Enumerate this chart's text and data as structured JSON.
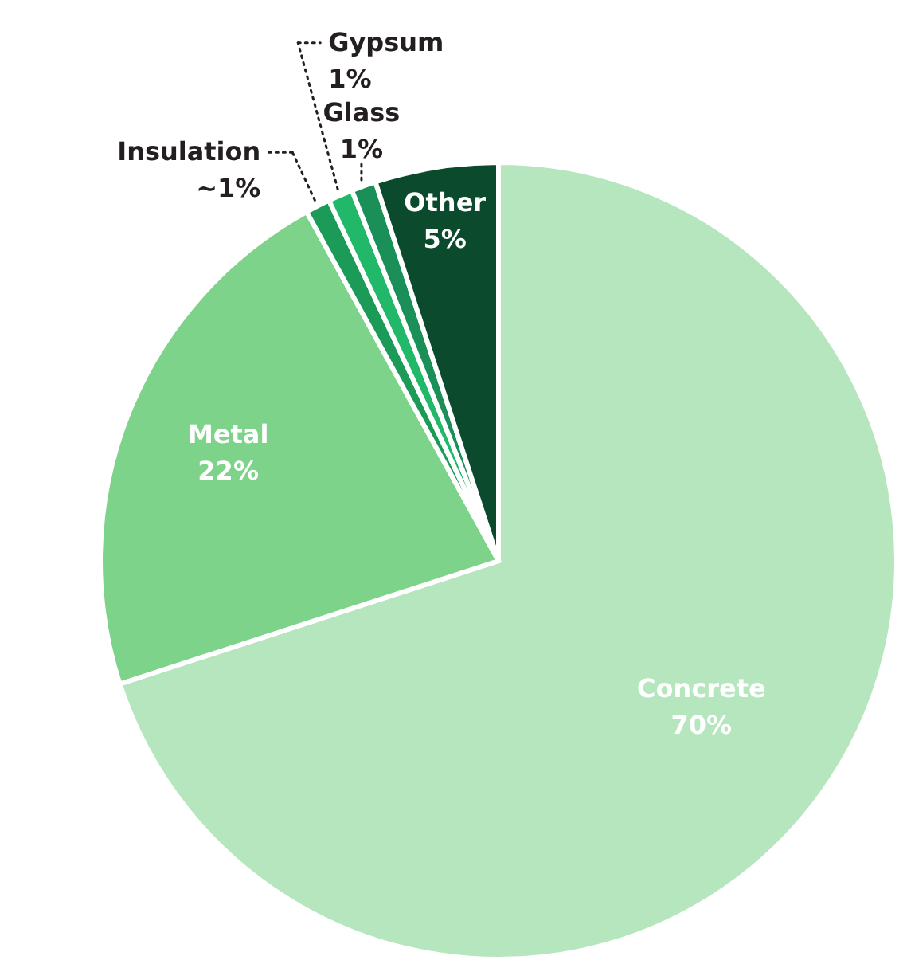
{
  "chart_data": {
    "type": "pie",
    "categories": [
      "Concrete",
      "Metal",
      "Insulation",
      "Gypsum",
      "Glass",
      "Other"
    ],
    "values": [
      70,
      22,
      1,
      1,
      1,
      5
    ],
    "value_labels": [
      "70%",
      "22%",
      "~1%",
      "1%",
      "1%",
      "5%"
    ],
    "colors": [
      "#b5e6bd",
      "#7dd389",
      "#1b9a58",
      "#22b86a",
      "#1a8f58",
      "#0b4a2d"
    ]
  }
}
